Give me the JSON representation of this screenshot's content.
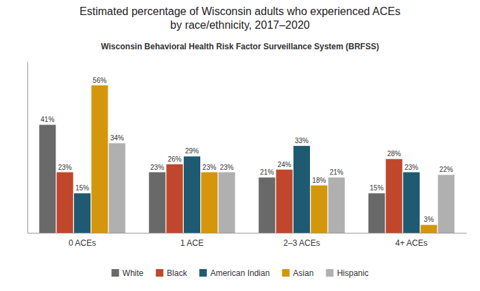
{
  "chart_data": {
    "type": "bar",
    "title": "Estimated percentage of Wisconsin adults who experienced ACEs\nby race/ethnicity, 2017–2020",
    "subtitle": "Wisconsin Behavioral Health Risk Factor Surveillance System (BRFSS)",
    "categories": [
      "0 ACEs",
      "1 ACE",
      "2–3 ACEs",
      "4+ ACEs"
    ],
    "series": [
      {
        "name": "White",
        "color": "#696969",
        "values": [
          41,
          23,
          21,
          15
        ],
        "value_labels": [
          "41%",
          "23%",
          "21%",
          "15%"
        ]
      },
      {
        "name": "Black",
        "color": "#c0472b",
        "values": [
          23,
          26,
          24,
          28
        ],
        "value_labels": [
          "23%",
          "26%",
          "24%",
          "28%"
        ]
      },
      {
        "name": "American Indian",
        "color": "#1e5a72",
        "values": [
          15,
          29,
          33,
          23
        ],
        "value_labels": [
          "15%",
          "29%",
          "33%",
          "23%"
        ]
      },
      {
        "name": "Asian",
        "color": "#d4960d",
        "values": [
          56,
          23,
          18,
          3
        ],
        "value_labels": [
          "56%",
          "23%",
          "18%",
          "3%"
        ]
      },
      {
        "name": "Hispanic",
        "color": "#b0b0b0",
        "values": [
          34,
          23,
          21,
          22
        ],
        "value_labels": [
          "34%",
          "23%",
          "21%",
          "22%"
        ]
      }
    ],
    "ylim": [
      0,
      65
    ],
    "grid": false,
    "legend": "bottom",
    "data_labels": true,
    "tick_labels": "x"
  }
}
